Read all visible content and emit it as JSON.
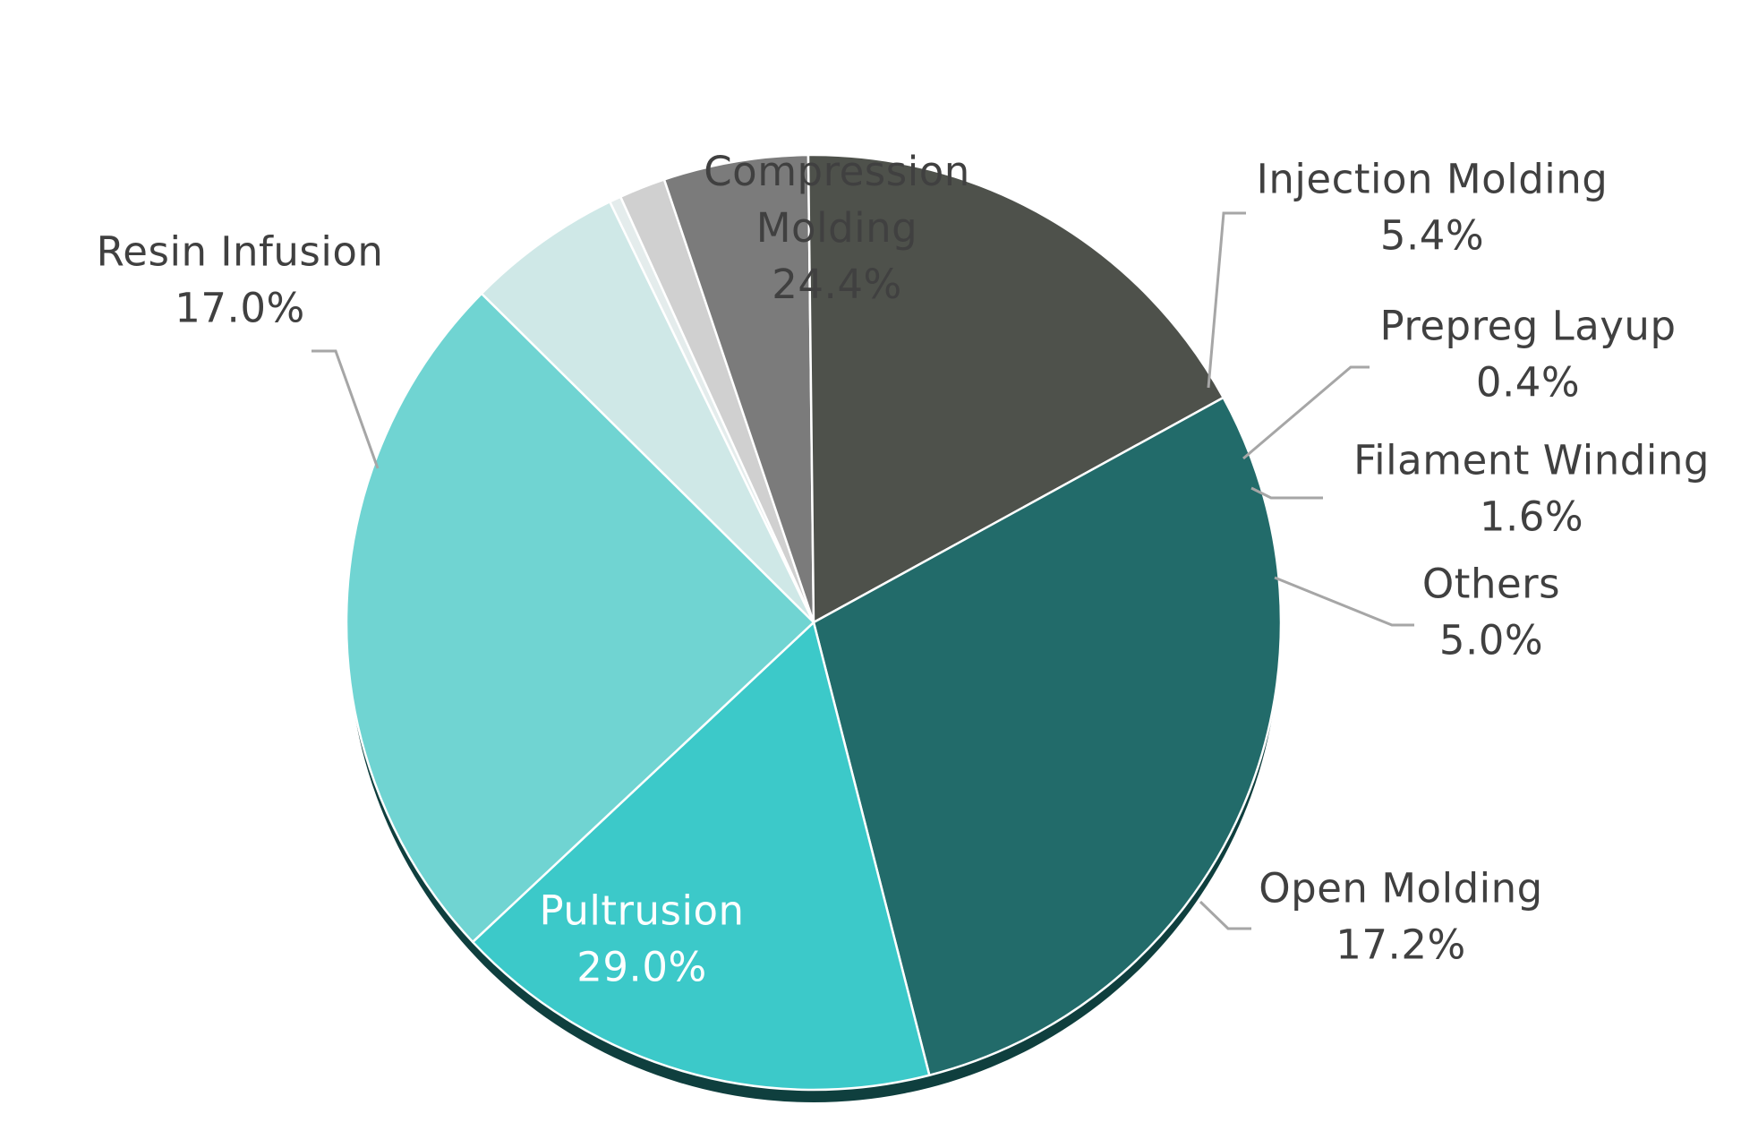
{
  "chart_data": {
    "type": "pie",
    "title": "",
    "unit": "%",
    "start_angle_deg": -45.3,
    "direction": "clockwise",
    "slices": [
      {
        "label_lines": [
          "Injection Molding"
        ],
        "value": 5.4,
        "value_text": "5.4%",
        "color": "#cfe8e7",
        "label_position": "outside",
        "label_color": "#404040"
      },
      {
        "label_lines": [
          "Prepreg Layup"
        ],
        "value": 0.4,
        "value_text": "0.4%",
        "color": "#e4ecec",
        "label_position": "outside",
        "label_color": "#404040"
      },
      {
        "label_lines": [
          "Filament Winding"
        ],
        "value": 1.6,
        "value_text": "1.6%",
        "color": "#d0d0d0",
        "label_position": "outside",
        "label_color": "#404040"
      },
      {
        "label_lines": [
          "Others"
        ],
        "value": 5.0,
        "value_text": "5.0%",
        "color": "#7b7b7b",
        "label_position": "outside",
        "label_color": "#404040"
      },
      {
        "label_lines": [
          "Open Molding"
        ],
        "value": 17.2,
        "value_text": "17.2%",
        "color": "#4e514b",
        "label_position": "outside",
        "label_color": "#404040"
      },
      {
        "label_lines": [
          "Pultrusion"
        ],
        "value": 29.0,
        "value_text": "29.0%",
        "color": "#226b6a",
        "label_position": "inside",
        "label_color": "#ffffff"
      },
      {
        "label_lines": [
          "Resin Infusion"
        ],
        "value": 17.0,
        "value_text": "17.0%",
        "color": "#3cc9c9",
        "label_position": "outside",
        "label_color": "#404040"
      },
      {
        "label_lines": [
          "Compression",
          "Molding"
        ],
        "value": 24.4,
        "value_text": "24.4%",
        "color": "#70d4d2",
        "label_position": "inside",
        "label_color": "#404040"
      }
    ],
    "shadow_color": "#0f3f3e",
    "leader_color": "#a6a6a6"
  }
}
